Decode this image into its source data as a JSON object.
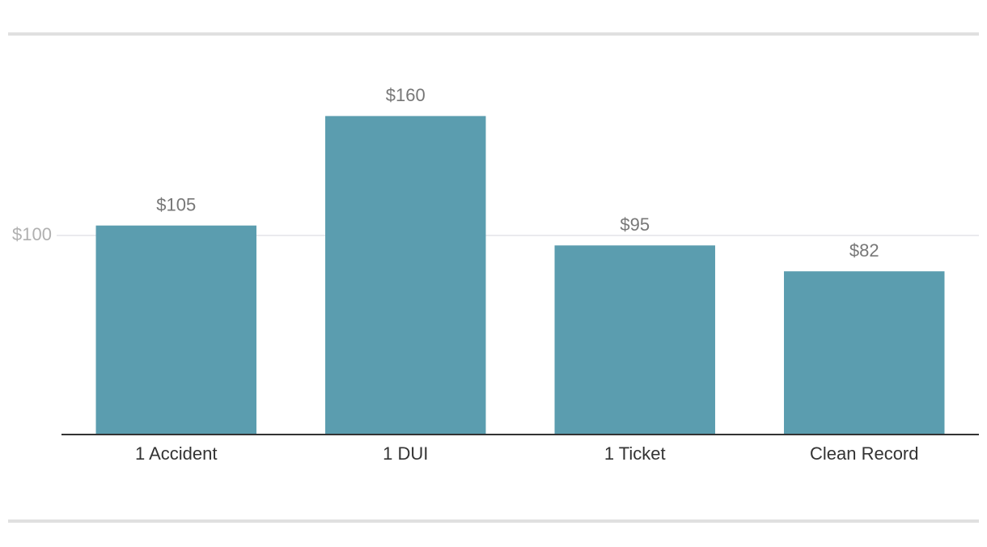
{
  "chart_data": {
    "type": "bar",
    "categories": [
      "1 Accident",
      "1 DUI",
      "1 Ticket",
      "Clean Record"
    ],
    "values": [
      105,
      160,
      95,
      82
    ],
    "value_labels": [
      "$105",
      "$160",
      "$95",
      "$82"
    ],
    "color": "#5b9daf",
    "ylim": [
      0,
      180
    ],
    "yticks": [
      {
        "value": 100,
        "label": "$100"
      }
    ],
    "grid": true
  }
}
